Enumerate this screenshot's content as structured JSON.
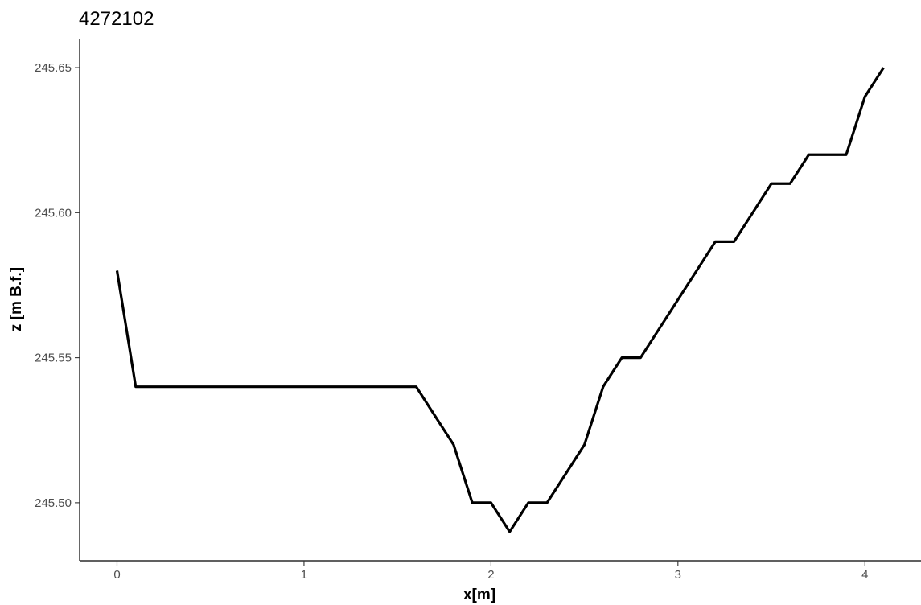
{
  "chart_data": {
    "type": "line",
    "title": "4272102",
    "xlabel": "x[m]",
    "ylabel": "z [m B.f.]",
    "xlim": [
      -0.2,
      4.3
    ],
    "ylim": [
      245.48,
      245.66
    ],
    "x_ticks": [
      0,
      1,
      2,
      3,
      4
    ],
    "x_tick_labels": [
      "0",
      "1",
      "2",
      "3",
      "4"
    ],
    "y_ticks": [
      245.5,
      245.55,
      245.6,
      245.65
    ],
    "y_tick_labels": [
      "245.50",
      "245.55",
      "245.60",
      "245.65"
    ],
    "grid": false,
    "legend": "none",
    "line_color": "#000000",
    "series": [
      {
        "x": [
          0,
          0.1,
          0.2,
          0.3,
          0.4,
          0.5,
          0.6,
          0.7,
          0.8,
          0.9,
          1.0,
          1.1,
          1.2,
          1.3,
          1.4,
          1.5,
          1.6,
          1.7,
          1.8,
          1.9,
          2.0,
          2.1,
          2.2,
          2.3,
          2.4,
          2.5,
          2.6,
          2.7,
          2.8,
          2.9,
          3.0,
          3.1,
          3.2,
          3.3,
          3.4,
          3.5,
          3.6,
          3.7,
          3.8,
          3.9,
          4.0,
          4.1
        ],
        "y": [
          245.58,
          245.54,
          245.54,
          245.54,
          245.54,
          245.54,
          245.54,
          245.54,
          245.54,
          245.54,
          245.54,
          245.54,
          245.54,
          245.54,
          245.54,
          245.54,
          245.54,
          245.53,
          245.52,
          245.5,
          245.5,
          245.49,
          245.5,
          245.5,
          245.51,
          245.52,
          245.54,
          245.55,
          245.55,
          245.56,
          245.57,
          245.58,
          245.59,
          245.59,
          245.6,
          245.61,
          245.61,
          245.62,
          245.62,
          245.62,
          245.64,
          245.65
        ]
      }
    ]
  }
}
